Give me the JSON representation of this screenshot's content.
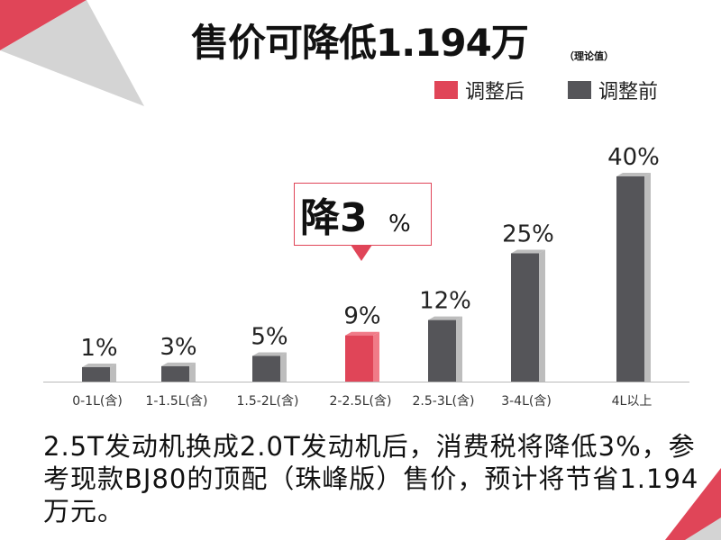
{
  "page": {
    "title": "售价可降低1.194万",
    "title_note": "（理论值）",
    "callout": {
      "big": "降3",
      "small": "%"
    },
    "caption": "2.5T发动机换成2.0T发动机后，消费税将降低3%，参考现款BJ80的顶配（珠峰版）售价，预计将节省1.194万元。",
    "colors": {
      "after": "#e04558",
      "before": "#555559",
      "accent": "#e04558"
    }
  },
  "chart_data": {
    "type": "bar",
    "categories": [
      "0-1L(含)",
      "1-1.5L(含)",
      "1.5-2L(含)",
      "2-2.5L(含)",
      "2.5-3L(含)",
      "3-4L(含)",
      "4L以上"
    ],
    "values": [
      1,
      3,
      5,
      9,
      12,
      25,
      40
    ],
    "value_labels": [
      "1%",
      "3%",
      "5%",
      "9%",
      "12%",
      "25%",
      "40%"
    ],
    "highlighted_index": 3,
    "legend": [
      {
        "name": "调整后",
        "color": "#e04558"
      },
      {
        "name": "调整前",
        "color": "#555559"
      }
    ],
    "legend_position": "top-right",
    "ylim": [
      0,
      40
    ],
    "grid": false
  }
}
